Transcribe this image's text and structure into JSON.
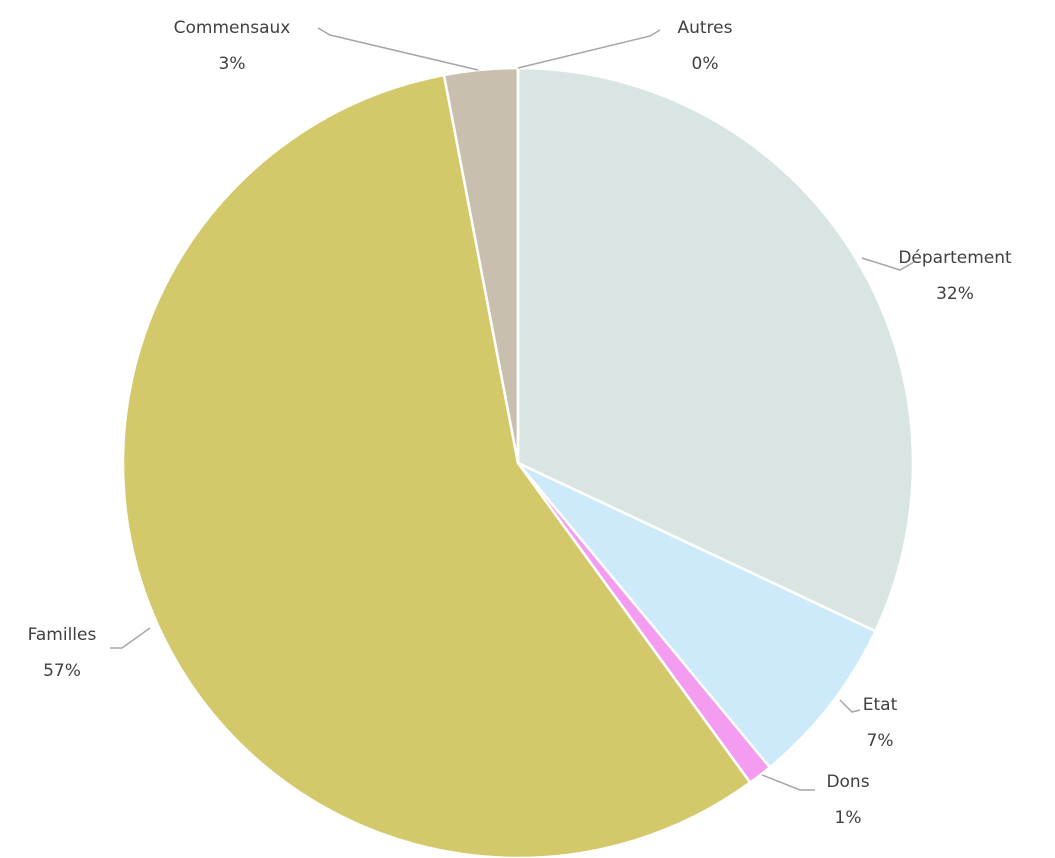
{
  "chart_data": {
    "type": "pie",
    "categories": [
      "Département",
      "Etat",
      "Dons",
      "Familles",
      "Commensaux",
      "Autres"
    ],
    "values": [
      32,
      7,
      1,
      57,
      3,
      0
    ],
    "value_labels": [
      "32%",
      "7%",
      "1%",
      "57%",
      "3%",
      "0%"
    ],
    "colors": [
      "#d9e5e3",
      "#cdeafb",
      "#f49cf0",
      "#d3c96b",
      "#c9bfae",
      "#bfbfbf"
    ]
  }
}
